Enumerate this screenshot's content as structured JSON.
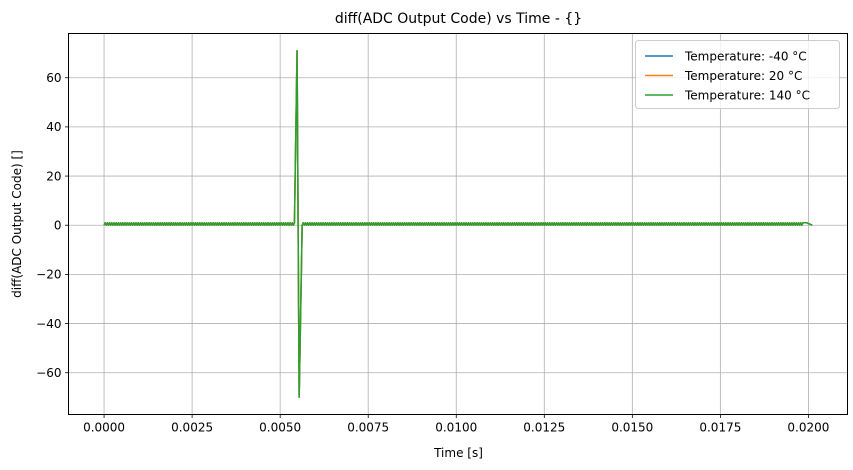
{
  "chart_data": {
    "type": "line",
    "title": "diff(ADC Output Code) vs Time - {}",
    "xlabel": "Time [s]",
    "ylabel": "diff(ADC Output Code) []",
    "xlim": [
      -0.00101,
      0.02111
    ],
    "ylim": [
      -77,
      78
    ],
    "xticks": [
      0.0,
      0.0025,
      0.005,
      0.0075,
      0.01,
      0.0125,
      0.015,
      0.0175,
      0.02
    ],
    "xtick_labels": [
      "0.0000",
      "0.0025",
      "0.0050",
      "0.0075",
      "0.0100",
      "0.0125",
      "0.0150",
      "0.0175",
      "0.0200"
    ],
    "yticks": [
      -60,
      -40,
      -20,
      0,
      20,
      40,
      60
    ],
    "ytick_labels": [
      "−60",
      "−40",
      "−20",
      "0",
      "20",
      "40",
      "60"
    ],
    "grid": true,
    "legend_position": "top-right",
    "series": [
      {
        "name": "Temperature: -40 °C",
        "color": "#1f77b4",
        "pattern": "alternating",
        "x_start": 0.0,
        "x_end": 0.02011,
        "period": 6.25e-05,
        "low": 0,
        "high": 1,
        "spikes": [
          [
            0.00548,
            71
          ],
          [
            0.00554,
            -70
          ]
        ],
        "tail": [
          [
            0.01985,
            1
          ],
          [
            0.01995,
            1
          ],
          [
            0.02011,
            0
          ]
        ]
      },
      {
        "name": "Temperature: 20 °C",
        "color": "#ff7f0e",
        "pattern": "alternating",
        "x_start": 0.0,
        "x_end": 0.02011,
        "period": 6.25e-05,
        "low": 0,
        "high": 1,
        "spikes": [
          [
            0.00548,
            71
          ],
          [
            0.00554,
            -70
          ]
        ],
        "tail": [
          [
            0.01985,
            1
          ],
          [
            0.01995,
            1
          ],
          [
            0.02011,
            0
          ]
        ]
      },
      {
        "name": "Temperature: 140 °C",
        "color": "#2ca02c",
        "pattern": "alternating",
        "x_start": 0.0,
        "x_end": 0.02011,
        "period": 6.25e-05,
        "low": 0,
        "high": 1,
        "spikes": [
          [
            0.00548,
            71
          ],
          [
            0.00554,
            -70
          ]
        ],
        "tail": [
          [
            0.01985,
            1
          ],
          [
            0.01995,
            1
          ],
          [
            0.02011,
            0
          ]
        ]
      }
    ]
  }
}
